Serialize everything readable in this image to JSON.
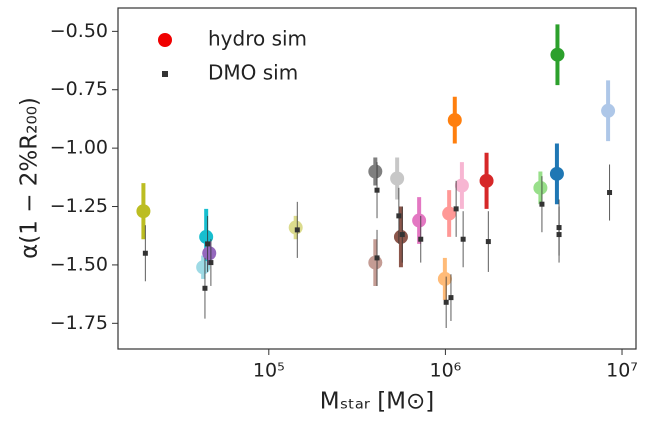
{
  "chart_data": {
    "type": "scatter",
    "xlabel": "Mₛₜₐᵣ [M⊙]",
    "ylabel": "α(1 − 2%R₂₀₀)",
    "xscale": "log",
    "xlim": [
      14000,
      12000000
    ],
    "xticks": [
      {
        "value": 100000,
        "label": "10⁵"
      },
      {
        "value": 1000000,
        "label": "10⁶"
      },
      {
        "value": 10000000,
        "label": "10⁷"
      }
    ],
    "ylim": [
      -1.86,
      -0.4
    ],
    "yticks": [
      {
        "value": -0.5,
        "label": "−0.50"
      },
      {
        "value": -0.75,
        "label": "−0.75"
      },
      {
        "value": -1.0,
        "label": "−1.00"
      },
      {
        "value": -1.25,
        "label": "−1.25"
      },
      {
        "value": -1.5,
        "label": "−1.50"
      },
      {
        "value": -1.75,
        "label": "−1.75"
      }
    ],
    "grid": false,
    "legend": "upper left",
    "series": [
      {
        "name": "hydro sim",
        "color": "#f00000",
        "marker": "circle",
        "x": [
          19500,
          44200,
          42500,
          46000,
          142000,
          401000,
          401000,
          533000,
          560000,
          710000,
          993000,
          1050000,
          1130000,
          1240000,
          1710000,
          3450000,
          4310000,
          4280000,
          8340000
        ],
        "values": [
          -1.27,
          -1.38,
          -1.51,
          -1.45,
          -1.34,
          -1.1,
          -1.49,
          -1.13,
          -1.38,
          -1.31,
          -1.56,
          -1.28,
          -0.88,
          -1.16,
          -1.14,
          -1.17,
          -0.6,
          -1.11,
          -0.84
        ],
        "errors": [
          0.12,
          0.12,
          0.05,
          0.05,
          0.05,
          0.06,
          0.1,
          0.09,
          0.13,
          0.1,
          0.09,
          0.1,
          0.1,
          0.1,
          0.12,
          0.07,
          0.13,
          0.13,
          0.13
        ],
        "point_colors": [
          "#bcbd22",
          "#17becf",
          "#9edae5",
          "#9467bd",
          "#dbdb8d",
          "#7f7f7f",
          "#c49c94",
          "#c7c7c7",
          "#8c564b",
          "#e377c2",
          "#ffbb78",
          "#ff9896",
          "#ff7f0e",
          "#f7b6d2",
          "#d62728",
          "#98df8a",
          "#2ca02c",
          "#1f77b4",
          "#aec7e8"
        ]
      },
      {
        "name": "DMO sim",
        "color": "#333333",
        "marker": "square",
        "x": [
          20000,
          45000,
          43500,
          47000,
          145000,
          410000,
          410000,
          545000,
          570000,
          725000,
          1010000,
          1075000,
          1150000,
          1260000,
          1750000,
          3520000,
          4400000,
          4400000,
          8500000
        ],
        "values": [
          -1.45,
          -1.41,
          -1.6,
          -1.49,
          -1.35,
          -1.18,
          -1.47,
          -1.29,
          -1.37,
          -1.39,
          -1.66,
          -1.64,
          -1.26,
          -1.39,
          -1.4,
          -1.24,
          -1.34,
          -1.37,
          -1.19
        ],
        "errors": [
          0.12,
          0.12,
          0.13,
          0.1,
          0.12,
          0.12,
          0.12,
          0.12,
          0.12,
          0.1,
          0.11,
          0.1,
          0.12,
          0.12,
          0.13,
          0.12,
          0.12,
          0.12,
          0.12
        ]
      }
    ]
  }
}
